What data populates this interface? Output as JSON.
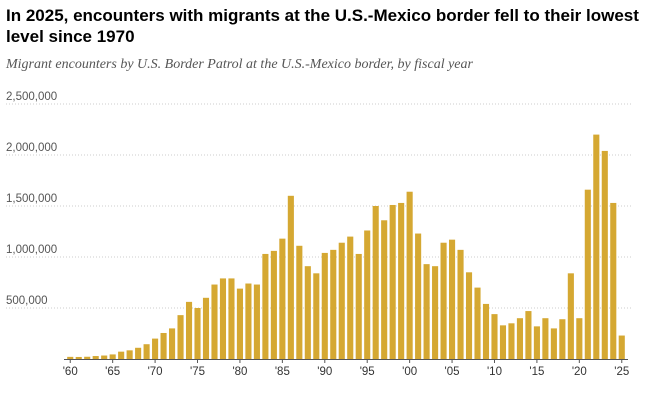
{
  "header": {
    "title": "In 2025, encounters with migrants at the U.S.-Mexico border fell to their lowest level since 1970",
    "subtitle": "Migrant encounters by U.S. Border Patrol at the U.S.-Mexico border, by fiscal year"
  },
  "colors": {
    "bar": "#d5a832",
    "grid": "#cccccc",
    "axis": "#555555"
  },
  "chart_data": {
    "type": "bar",
    "title": "In 2025, encounters with migrants at the U.S.-Mexico border fell to their lowest level since 1970",
    "subtitle": "Migrant encounters by U.S. Border Patrol at the U.S.-Mexico border, by fiscal year",
    "xlabel": "",
    "ylabel": "",
    "ylim": [
      0,
      2500000
    ],
    "grid": true,
    "categories": [
      1960,
      1961,
      1962,
      1963,
      1964,
      1965,
      1966,
      1967,
      1968,
      1969,
      1970,
      1971,
      1972,
      1973,
      1974,
      1975,
      1976,
      1977,
      1978,
      1979,
      1980,
      1981,
      1982,
      1983,
      1984,
      1985,
      1986,
      1987,
      1988,
      1989,
      1990,
      1991,
      1992,
      1993,
      1994,
      1995,
      1996,
      1997,
      1998,
      1999,
      2000,
      2001,
      2002,
      2003,
      2004,
      2005,
      2006,
      2007,
      2008,
      2009,
      2010,
      2011,
      2012,
      2013,
      2014,
      2015,
      2016,
      2017,
      2018,
      2019,
      2020,
      2021,
      2022,
      2023,
      2024,
      2025
    ],
    "values": [
      21000,
      20000,
      22000,
      29000,
      34000,
      45000,
      72000,
      85000,
      110000,
      145000,
      200000,
      255000,
      300000,
      430000,
      560000,
      500000,
      600000,
      730000,
      790000,
      790000,
      690000,
      740000,
      730000,
      1030000,
      1060000,
      1180000,
      1600000,
      1110000,
      910000,
      840000,
      1040000,
      1070000,
      1140000,
      1200000,
      1030000,
      1260000,
      1500000,
      1360000,
      1510000,
      1530000,
      1640000,
      1230000,
      930000,
      910000,
      1140000,
      1170000,
      1070000,
      850000,
      700000,
      540000,
      440000,
      330000,
      350000,
      400000,
      470000,
      320000,
      400000,
      300000,
      390000,
      840000,
      400000,
      1660000,
      2200000,
      2040000,
      1530000,
      230000
    ],
    "y_ticks": [
      {
        "value": 500000,
        "label": "500,000"
      },
      {
        "value": 1000000,
        "label": "1,000,000"
      },
      {
        "value": 1500000,
        "label": "1,500,000"
      },
      {
        "value": 2000000,
        "label": "2,000,000"
      },
      {
        "value": 2500000,
        "label": "2,500,000"
      }
    ],
    "x_ticks": [
      {
        "year": 1960,
        "label": "'60"
      },
      {
        "year": 1965,
        "label": "'65"
      },
      {
        "year": 1970,
        "label": "'70"
      },
      {
        "year": 1975,
        "label": "'75"
      },
      {
        "year": 1980,
        "label": "'80"
      },
      {
        "year": 1985,
        "label": "'85"
      },
      {
        "year": 1990,
        "label": "'90"
      },
      {
        "year": 1995,
        "label": "'95"
      },
      {
        "year": 2000,
        "label": "'00"
      },
      {
        "year": 2005,
        "label": "'05"
      },
      {
        "year": 2010,
        "label": "'10"
      },
      {
        "year": 2015,
        "label": "'15"
      },
      {
        "year": 2020,
        "label": "'20"
      },
      {
        "year": 2025,
        "label": "'25"
      }
    ]
  }
}
